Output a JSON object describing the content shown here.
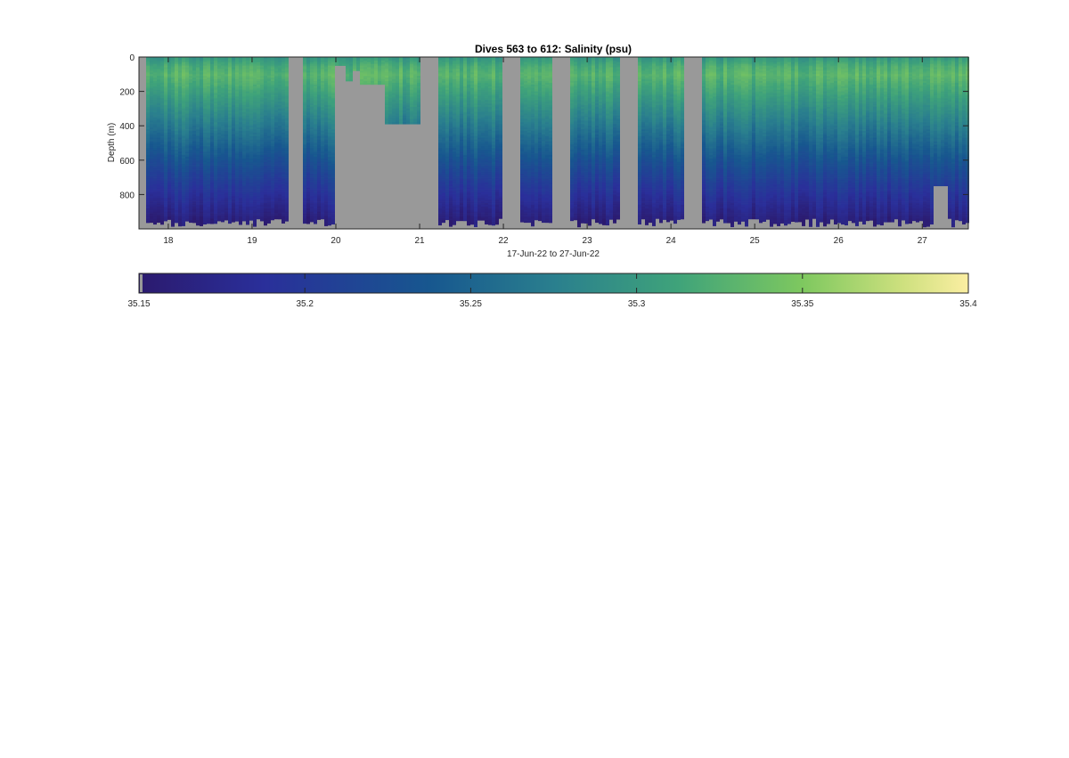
{
  "chart_data": {
    "type": "heatmap",
    "title": "Dives 563 to 612: Salinity (psu)",
    "xlabel": "17-Jun-22 to 27-Jun-22",
    "ylabel": "Depth (m)",
    "x_range_days": [
      17.65,
      27.55
    ],
    "y_range": [
      0,
      1000
    ],
    "y_reversed": true,
    "x_ticks": [
      18,
      19,
      20,
      21,
      22,
      23,
      24,
      25,
      26,
      27
    ],
    "x_tick_labels": [
      "18",
      "19",
      "20",
      "21",
      "22",
      "23",
      "24",
      "25",
      "26",
      "27"
    ],
    "y_ticks": [
      0,
      200,
      400,
      600,
      800
    ],
    "y_tick_labels": [
      "0",
      "200",
      "400",
      "600",
      "800"
    ],
    "grid": false,
    "missing_color": "#999999",
    "gaps": [
      {
        "start": 19.42,
        "end": 19.62
      },
      {
        "start": 21.02,
        "end": 21.22
      },
      {
        "start": 22.0,
        "end": 22.2
      },
      {
        "start": 22.6,
        "end": 22.8
      },
      {
        "start": 23.4,
        "end": 23.6
      },
      {
        "start": 24.17,
        "end": 24.37
      }
    ],
    "partial_dives": [
      {
        "start": 19.99,
        "end": 20.1,
        "max_depth": 50
      },
      {
        "start": 20.1,
        "end": 20.2,
        "max_depth": 140
      },
      {
        "start": 20.2,
        "end": 20.3,
        "max_depth": 80
      },
      {
        "start": 20.3,
        "end": 20.6,
        "max_depth": 160
      },
      {
        "start": 20.6,
        "end": 21.02,
        "max_depth": 390
      }
    ],
    "profile_summary": {
      "depths_m": [
        0,
        50,
        100,
        200,
        300,
        400,
        500,
        600,
        700,
        800,
        900,
        950
      ],
      "typical_salinity_psu": [
        35.3,
        35.32,
        35.33,
        35.31,
        35.29,
        35.27,
        35.25,
        35.23,
        35.21,
        35.19,
        35.17,
        35.16
      ]
    },
    "colorbar": {
      "min": 35.15,
      "max": 35.4,
      "ticks": [
        35.15,
        35.2,
        35.25,
        35.3,
        35.35,
        35.4
      ],
      "tick_labels": [
        "35.15",
        "35.2",
        "35.25",
        "35.3",
        "35.35",
        "35.4"
      ],
      "colormap": "parula",
      "colors": [
        "#352a87",
        "#0f5cdd",
        "#1481d6",
        "#06a4ca",
        "#2eb7a4",
        "#87bf77",
        "#d1bb59",
        "#fec832",
        "#f9fb0e"
      ]
    }
  }
}
